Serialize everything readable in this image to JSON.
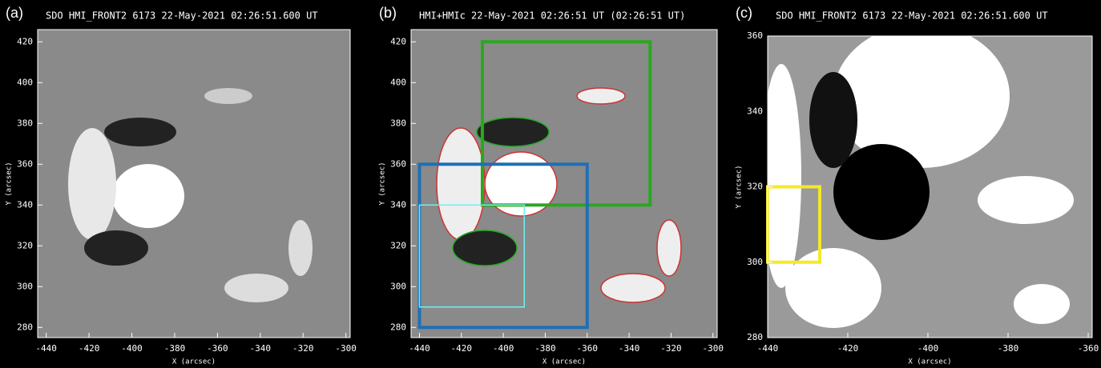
{
  "chart_data": [
    {
      "type": "image",
      "panel": "(a)",
      "title": "SDO HMI_FRONT2 6173 22-May-2021 02:26:51.600 UT",
      "xlabel": "X (arcsec)",
      "ylabel": "Y (arcsec)",
      "xlim": [
        -444,
        -298
      ],
      "ylim": [
        275,
        426
      ],
      "xticks": [
        -440,
        -420,
        -400,
        -380,
        -360,
        -340,
        -320,
        -300
      ],
      "yticks": [
        280,
        300,
        320,
        340,
        360,
        380,
        400,
        420
      ],
      "boxes": []
    },
    {
      "type": "image",
      "panel": "(b)",
      "title": "HMI+HMIc 22-May-2021 02:26:51 UT (02:26:51 UT)",
      "xlabel": "X (arcsec)",
      "ylabel": "Y (arcsec)",
      "xlim": [
        -444,
        -298
      ],
      "ylim": [
        275,
        426
      ],
      "xticks": [
        -440,
        -420,
        -400,
        -380,
        -360,
        -340,
        -320,
        -300
      ],
      "yticks": [
        280,
        300,
        320,
        340,
        360,
        380,
        400,
        420
      ],
      "boxes": [
        {
          "x": [
            -410,
            -330
          ],
          "y": [
            340,
            420
          ],
          "color": "#2aa81e"
        },
        {
          "x": [
            -440,
            -360
          ],
          "y": [
            280,
            360
          ],
          "color": "#1f6fb5"
        },
        {
          "x": [
            -440,
            -390
          ],
          "y": [
            290,
            340
          ],
          "color": "#6ff0f0"
        }
      ]
    },
    {
      "type": "image",
      "panel": "(c)",
      "title": "SDO HMI_FRONT2 6173 22-May-2021 02:26:51.600 UT",
      "xlabel": "X (arcsec)",
      "ylabel": "Y (arcsec)",
      "xlim": [
        -440,
        -359
      ],
      "ylim": [
        280,
        360
      ],
      "xticks": [
        -440,
        -420,
        -400,
        -380,
        -360
      ],
      "yticks": [
        280,
        300,
        320,
        340,
        360
      ],
      "boxes": [
        {
          "x": [
            -440,
            -427
          ],
          "y": [
            300,
            320
          ],
          "color": "#f5e82a"
        }
      ]
    }
  ]
}
